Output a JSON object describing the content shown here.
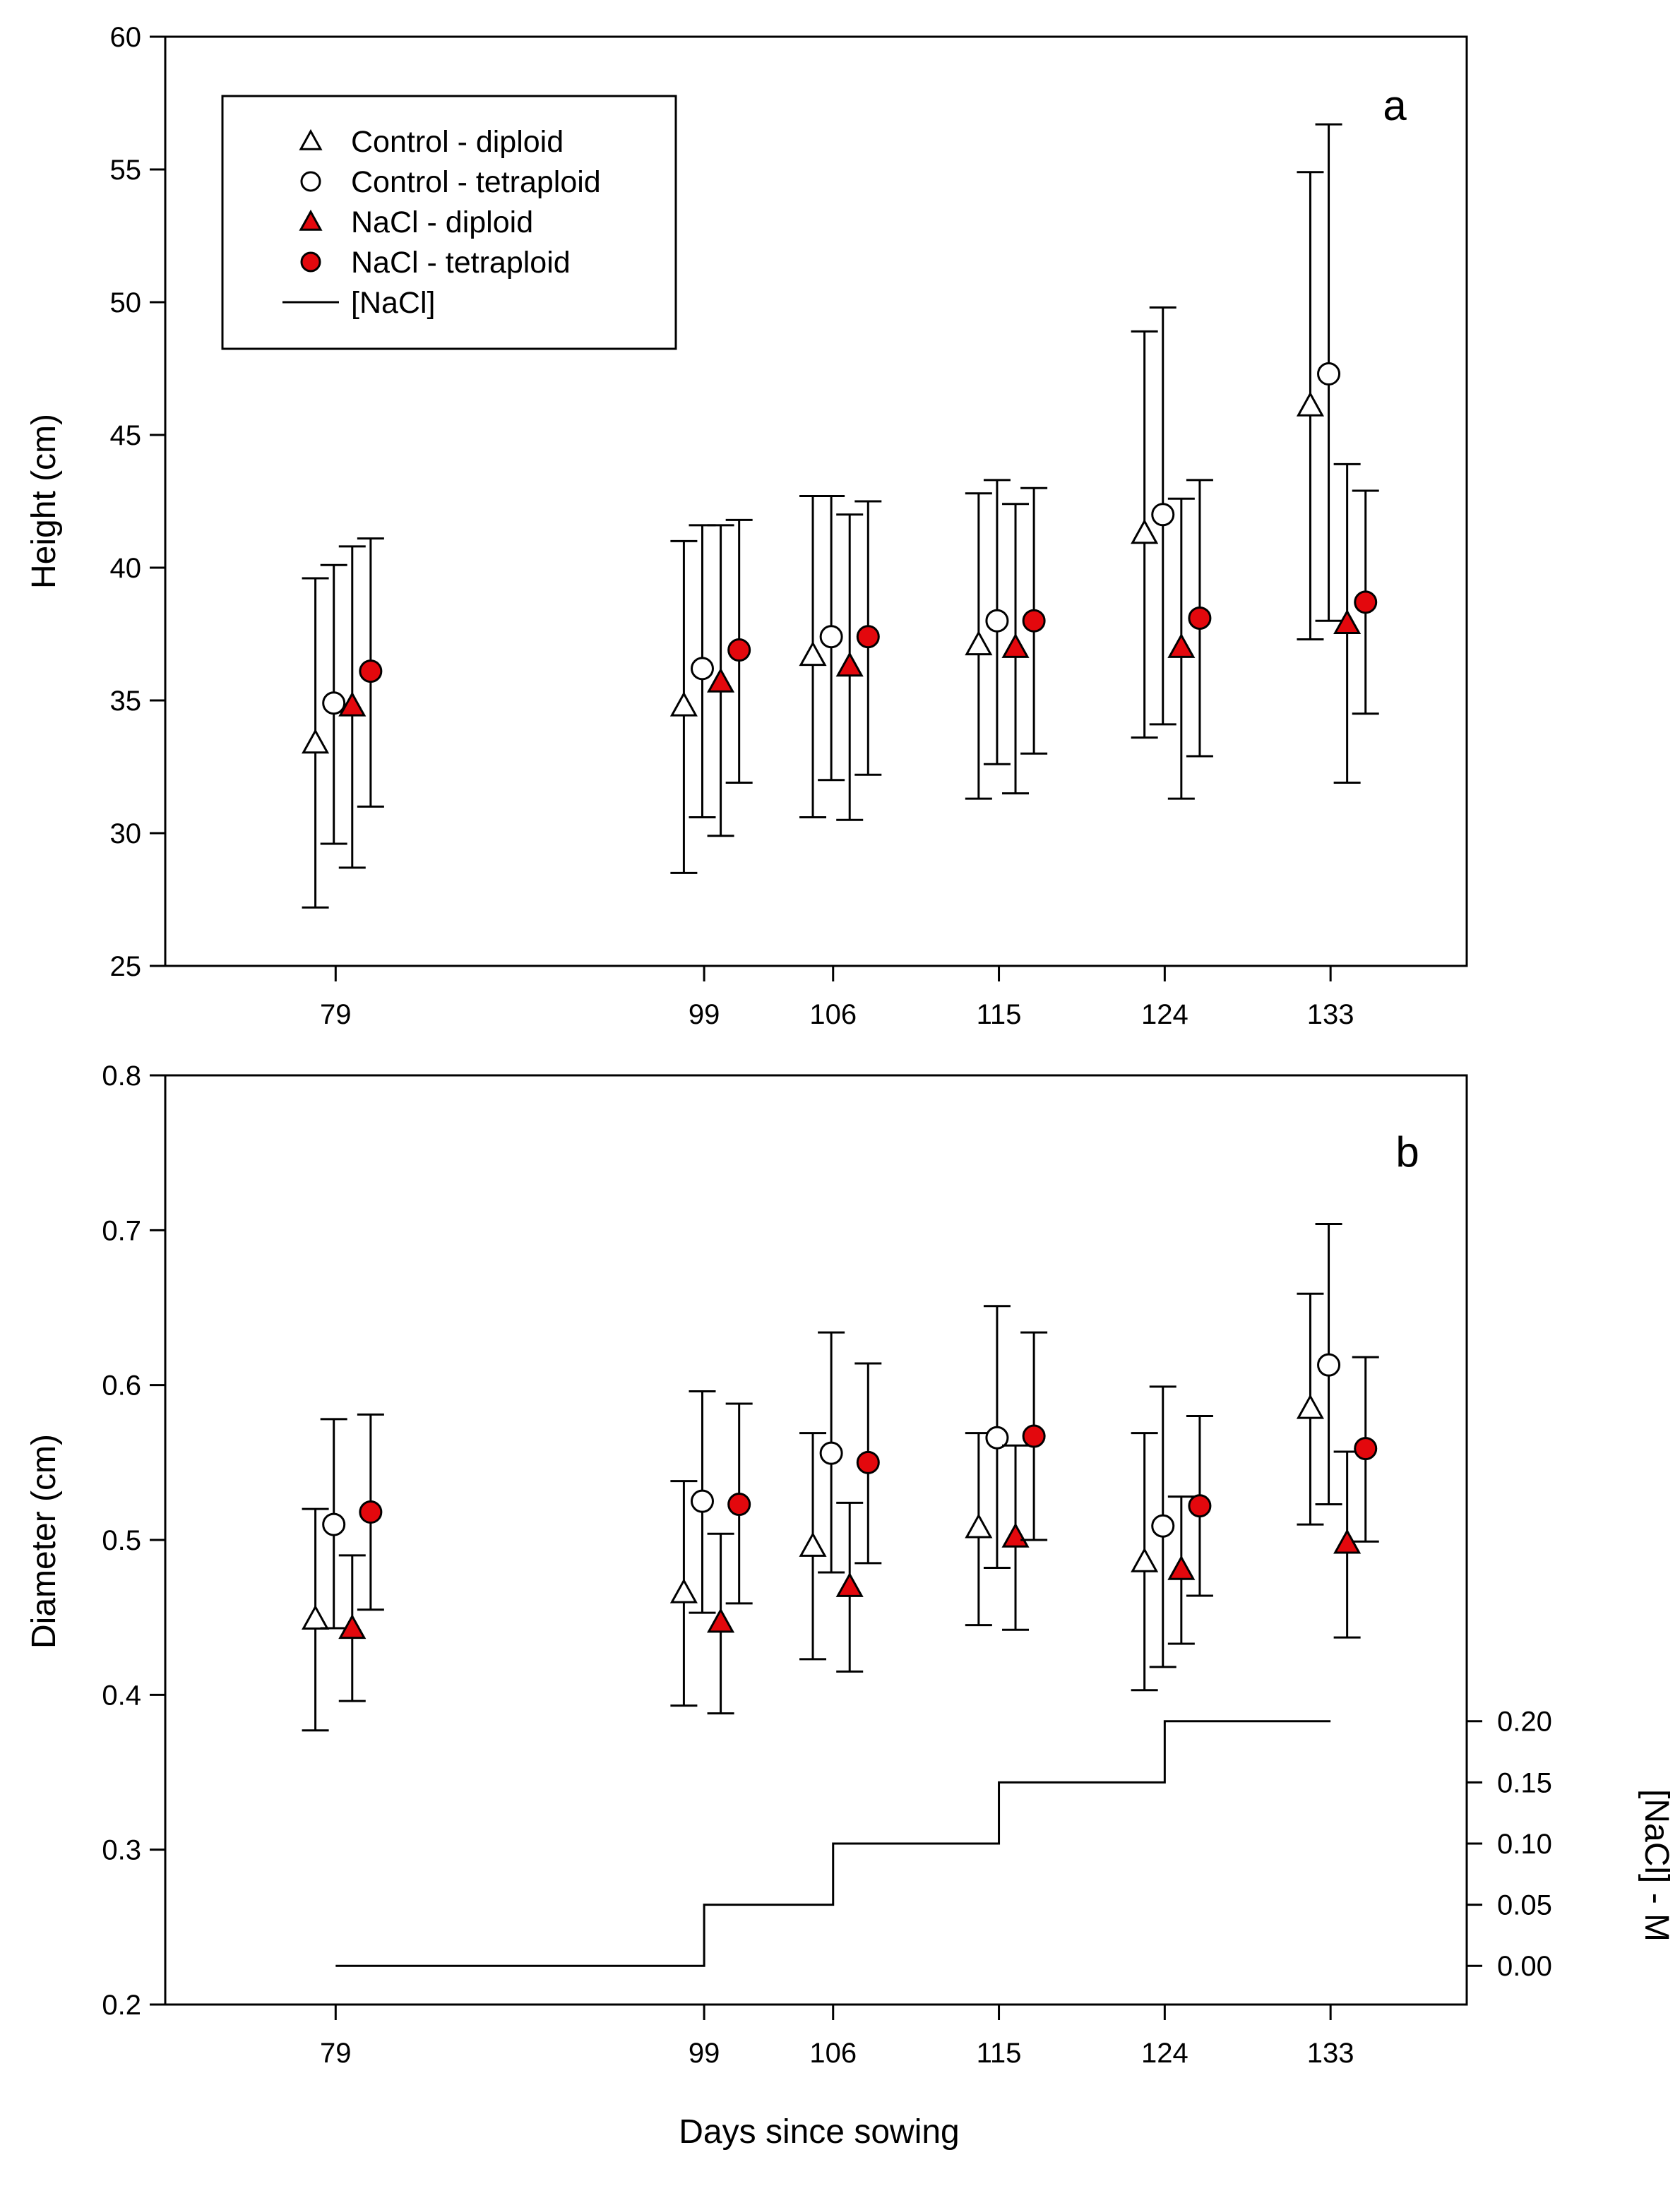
{
  "chart_data": [
    {
      "panel": "a",
      "type": "scatter",
      "ylabel": "Height (cm)",
      "ylim": [
        25,
        60
      ],
      "yticks": [
        25,
        30,
        35,
        40,
        45,
        50,
        55,
        60
      ],
      "categories": [
        79,
        99,
        106,
        115,
        124,
        133
      ],
      "category_labels": [
        "79",
        "99",
        "106",
        "115",
        "124",
        "133"
      ],
      "legend": {
        "position": "top-left",
        "entries": [
          "Control - diploid",
          "Control - tetraploid",
          "NaCl - diploid",
          "NaCl - tetraploid",
          "[NaCl]"
        ]
      },
      "series": [
        {
          "name": "Control - diploid",
          "marker": "triangle-open",
          "offset": -1.1,
          "values": [
            33.4,
            34.8,
            36.7,
            37.1,
            41.3,
            46.1
          ],
          "lower": [
            27.2,
            28.5,
            30.6,
            31.3,
            33.6,
            37.3
          ],
          "upper": [
            39.6,
            41.0,
            42.7,
            42.8,
            48.9,
            54.9
          ]
        },
        {
          "name": "Control - tetraploid",
          "marker": "circle-open",
          "offset": -0.1,
          "values": [
            34.9,
            36.2,
            37.4,
            38.0,
            42.0,
            47.3
          ],
          "lower": [
            29.6,
            30.6,
            32.0,
            32.6,
            34.1,
            38.0
          ],
          "upper": [
            40.1,
            41.6,
            42.7,
            43.3,
            49.8,
            56.7
          ]
        },
        {
          "name": "NaCl - diploid",
          "marker": "triangle-filled",
          "offset": 0.9,
          "values": [
            34.8,
            35.7,
            36.3,
            37.0,
            37.0,
            37.9
          ],
          "lower": [
            28.7,
            29.9,
            30.5,
            31.5,
            31.3,
            31.9
          ],
          "upper": [
            40.8,
            41.6,
            42.0,
            42.4,
            42.6,
            43.9
          ]
        },
        {
          "name": "NaCl - tetraploid",
          "marker": "circle-filled",
          "offset": 1.9,
          "values": [
            36.1,
            36.9,
            37.4,
            38.0,
            38.1,
            38.7
          ],
          "lower": [
            31.0,
            31.9,
            32.2,
            33.0,
            32.9,
            34.5
          ],
          "upper": [
            41.1,
            41.8,
            42.5,
            43.0,
            43.3,
            42.9
          ]
        }
      ],
      "annotation": "a"
    },
    {
      "panel": "b",
      "type": "scatter",
      "ylabel": "Diameter (cm)",
      "ylim": [
        0.2,
        0.8
      ],
      "yticks": [
        "0.2",
        "0.3",
        "0.4",
        "0.5",
        "0.6",
        "0.7",
        "0.8"
      ],
      "categories": [
        79,
        99,
        106,
        115,
        124,
        133
      ],
      "category_labels": [
        "79",
        "99",
        "106",
        "115",
        "124",
        "133"
      ],
      "xlabel": "Days since sowing",
      "series": [
        {
          "name": "Control - diploid",
          "marker": "triangle-open",
          "offset": -1.1,
          "values": [
            0.449,
            0.466,
            0.496,
            0.508,
            0.486,
            0.585
          ],
          "lower": [
            0.377,
            0.393,
            0.423,
            0.445,
            0.403,
            0.51
          ],
          "upper": [
            0.52,
            0.538,
            0.569,
            0.569,
            0.569,
            0.659
          ]
        },
        {
          "name": "Control - tetraploid",
          "marker": "circle-open",
          "offset": -0.1,
          "values": [
            0.51,
            0.525,
            0.556,
            0.566,
            0.509,
            0.613
          ],
          "lower": [
            0.443,
            0.453,
            0.479,
            0.482,
            0.418,
            0.523
          ],
          "upper": [
            0.578,
            0.596,
            0.634,
            0.651,
            0.599,
            0.704
          ]
        },
        {
          "name": "NaCl - diploid",
          "marker": "triangle-filled",
          "offset": 0.9,
          "values": [
            0.443,
            0.447,
            0.47,
            0.502,
            0.481,
            0.498
          ],
          "lower": [
            0.396,
            0.388,
            0.415,
            0.442,
            0.433,
            0.437
          ],
          "upper": [
            0.49,
            0.504,
            0.524,
            0.561,
            0.528,
            0.557
          ]
        },
        {
          "name": "NaCl - tetraploid",
          "marker": "circle-filled",
          "offset": 1.9,
          "values": [
            0.518,
            0.523,
            0.55,
            0.567,
            0.522,
            0.559
          ],
          "lower": [
            0.455,
            0.459,
            0.485,
            0.5,
            0.464,
            0.499
          ],
          "upper": [
            0.581,
            0.588,
            0.614,
            0.634,
            0.58,
            0.618
          ]
        }
      ],
      "secondary_axis": {
        "label": "[NaCl] - M",
        "ylim": [
          -0.0316,
          0.7279
        ],
        "ticks": [
          "0.00",
          "0.05",
          "0.10",
          "0.15",
          "0.20"
        ],
        "series": {
          "name": "[NaCl]",
          "type": "step",
          "steps": [
            {
              "from": 79,
              "to": 99,
              "value": 0.0
            },
            {
              "from": 99,
              "to": 106,
              "value": 0.05
            },
            {
              "from": 106,
              "to": 115,
              "value": 0.1
            },
            {
              "from": 115,
              "to": 124,
              "value": 0.15
            },
            {
              "from": 124,
              "to": 133,
              "value": 0.2
            }
          ]
        }
      },
      "annotation": "b"
    }
  ],
  "colors": {
    "filled_marker": "#e3080d",
    "open_marker": "#ffffff",
    "axis": "#000000"
  }
}
